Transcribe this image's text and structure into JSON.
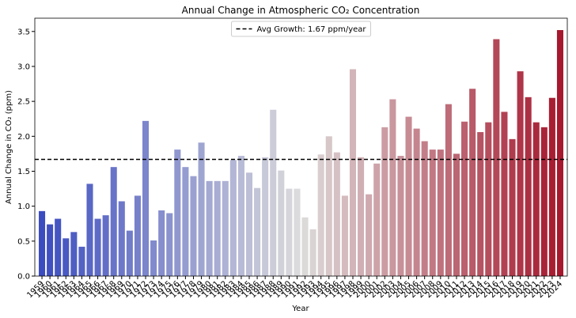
{
  "chart_data": {
    "type": "bar",
    "title": "Annual Change in Atmospheric CO₂ Concentration",
    "x_label": "Year",
    "y_label": "Annual Change in CO₂ (ppm)",
    "categories": [
      "1959",
      "1960",
      "1961",
      "1962",
      "1963",
      "1964",
      "1965",
      "1966",
      "1967",
      "1968",
      "1969",
      "1970",
      "1971",
      "1972",
      "1973",
      "1974",
      "1975",
      "1976",
      "1977",
      "1978",
      "1979",
      "1980",
      "1981",
      "1982",
      "1983",
      "1984",
      "1985",
      "1986",
      "1987",
      "1988",
      "1989",
      "1990",
      "1991",
      "1992",
      "1993",
      "1994",
      "1995",
      "1996",
      "1997",
      "1998",
      "1999",
      "2000",
      "2001",
      "2002",
      "2003",
      "2004",
      "2005",
      "2006",
      "2007",
      "2008",
      "2009",
      "2010",
      "2011",
      "2012",
      "2013",
      "2014",
      "2015",
      "2016",
      "2017",
      "2018",
      "2019",
      "2020",
      "2021",
      "2022",
      "2023",
      "2024"
    ],
    "values": [
      0.93,
      0.74,
      0.82,
      0.54,
      0.63,
      0.42,
      1.32,
      0.82,
      0.87,
      1.56,
      1.07,
      0.65,
      1.15,
      2.22,
      0.51,
      0.94,
      0.9,
      1.81,
      1.56,
      1.43,
      1.91,
      1.36,
      1.36,
      1.36,
      1.66,
      1.72,
      1.48,
      1.26,
      1.7,
      2.38,
      1.51,
      1.25,
      1.25,
      0.84,
      0.67,
      1.74,
      2.0,
      1.77,
      1.15,
      2.96,
      1.7,
      1.17,
      1.61,
      2.13,
      2.53,
      1.72,
      2.28,
      2.11,
      1.93,
      1.81,
      1.81,
      2.46,
      1.75,
      2.21,
      2.68,
      2.06,
      2.2,
      3.39,
      2.35,
      1.96,
      2.93,
      2.56,
      2.2,
      2.13,
      2.55,
      3.52
    ],
    "colormap": [
      "#3b4cc0",
      "#dddcdc",
      "#a5182d"
    ],
    "ylim": [
      0,
      3.69
    ],
    "yticks": [
      {
        "value": 0,
        "label": "0.0"
      },
      {
        "value": 0.5,
        "label": "0.5"
      },
      {
        "value": 1,
        "label": "1.0"
      },
      {
        "value": 1.5,
        "label": "1.5"
      },
      {
        "value": 2,
        "label": "2.0"
      },
      {
        "value": 2.5,
        "label": "2.5"
      },
      {
        "value": 3,
        "label": "3.0"
      },
      {
        "value": 3.5,
        "label": "3.5"
      }
    ],
    "avg_line": {
      "value": 1.67,
      "label": "Avg Growth: 1.67 ppm/year",
      "color": "#000000"
    },
    "legend": "upper center"
  }
}
